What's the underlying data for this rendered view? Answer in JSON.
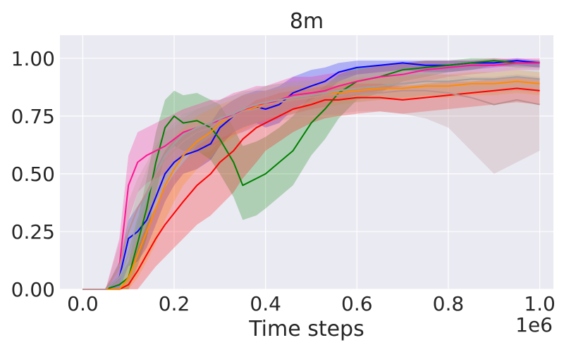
{
  "chart_data": {
    "type": "line",
    "title": "8m",
    "xlabel": "Time steps",
    "ylabel": "",
    "x_scale_label": "1e6",
    "xlim": [
      -0.05,
      1.03
    ],
    "ylim": [
      0.0,
      1.1
    ],
    "x_ticks": [
      0.0,
      0.2,
      0.4,
      0.6,
      0.8,
      1.0
    ],
    "x_tick_labels": [
      "0.0",
      "0.2",
      "0.4",
      "0.6",
      "0.8",
      "1.0"
    ],
    "y_ticks": [
      0.0,
      0.25,
      0.5,
      0.75,
      1.0
    ],
    "y_tick_labels": [
      "0.00",
      "0.25",
      "0.50",
      "0.75",
      "1.00"
    ],
    "grid": true,
    "background": "#eaeaf2",
    "x": [
      0.0,
      0.05,
      0.08,
      0.1,
      0.12,
      0.14,
      0.16,
      0.18,
      0.2,
      0.22,
      0.25,
      0.28,
      0.3,
      0.33,
      0.35,
      0.38,
      0.4,
      0.43,
      0.46,
      0.5,
      0.53,
      0.56,
      0.6,
      0.65,
      0.7,
      0.75,
      0.8,
      0.85,
      0.9,
      0.95,
      1.0
    ],
    "series": [
      {
        "color": "#0000ff",
        "values": [
          0.0,
          0.0,
          0.05,
          0.22,
          0.25,
          0.3,
          0.4,
          0.5,
          0.55,
          0.58,
          0.6,
          0.63,
          0.7,
          0.75,
          0.77,
          0.79,
          0.78,
          0.8,
          0.85,
          0.88,
          0.9,
          0.94,
          0.96,
          0.97,
          0.98,
          0.97,
          0.97,
          0.98,
          0.98,
          0.99,
          0.98
        ],
        "lower": [
          0.0,
          0.0,
          0.0,
          0.1,
          0.12,
          0.18,
          0.28,
          0.38,
          0.45,
          0.5,
          0.52,
          0.56,
          0.62,
          0.68,
          0.7,
          0.72,
          0.7,
          0.72,
          0.78,
          0.82,
          0.85,
          0.9,
          0.93,
          0.94,
          0.95,
          0.94,
          0.94,
          0.95,
          0.96,
          0.97,
          0.96
        ],
        "upper": [
          0.0,
          0.0,
          0.12,
          0.3,
          0.36,
          0.42,
          0.52,
          0.6,
          0.65,
          0.68,
          0.7,
          0.72,
          0.78,
          0.82,
          0.84,
          0.86,
          0.86,
          0.88,
          0.92,
          0.95,
          0.96,
          0.98,
          0.99,
          0.99,
          0.99,
          0.99,
          0.99,
          0.99,
          0.99,
          1.0,
          0.99
        ]
      },
      {
        "color": "#008000",
        "values": [
          0.0,
          0.0,
          0.02,
          0.05,
          0.2,
          0.35,
          0.55,
          0.7,
          0.75,
          0.72,
          0.73,
          0.7,
          0.65,
          0.55,
          0.45,
          0.48,
          0.5,
          0.55,
          0.6,
          0.72,
          0.78,
          0.85,
          0.9,
          0.92,
          0.95,
          0.96,
          0.97,
          0.98,
          0.99,
          0.98,
          0.98
        ],
        "lower": [
          0.0,
          0.0,
          0.0,
          0.0,
          0.1,
          0.22,
          0.42,
          0.58,
          0.62,
          0.6,
          0.6,
          0.56,
          0.5,
          0.4,
          0.3,
          0.32,
          0.35,
          0.4,
          0.45,
          0.58,
          0.65,
          0.74,
          0.82,
          0.85,
          0.9,
          0.92,
          0.94,
          0.95,
          0.97,
          0.96,
          0.96
        ],
        "upper": [
          0.0,
          0.0,
          0.05,
          0.12,
          0.3,
          0.48,
          0.68,
          0.82,
          0.86,
          0.84,
          0.85,
          0.82,
          0.8,
          0.7,
          0.62,
          0.64,
          0.66,
          0.7,
          0.75,
          0.84,
          0.88,
          0.93,
          0.96,
          0.97,
          0.98,
          0.99,
          0.99,
          1.0,
          1.0,
          0.99,
          0.99
        ]
      },
      {
        "color": "#ff1493",
        "values": [
          0.0,
          0.0,
          0.1,
          0.45,
          0.55,
          0.58,
          0.6,
          0.62,
          0.65,
          0.68,
          0.7,
          0.72,
          0.73,
          0.76,
          0.77,
          0.8,
          0.8,
          0.82,
          0.84,
          0.85,
          0.86,
          0.88,
          0.9,
          0.92,
          0.93,
          0.95,
          0.96,
          0.97,
          0.97,
          0.98,
          0.98
        ],
        "lower": [
          0.0,
          0.0,
          0.0,
          0.3,
          0.42,
          0.46,
          0.48,
          0.5,
          0.54,
          0.58,
          0.6,
          0.62,
          0.64,
          0.67,
          0.68,
          0.71,
          0.72,
          0.74,
          0.76,
          0.78,
          0.79,
          0.82,
          0.84,
          0.86,
          0.88,
          0.9,
          0.92,
          0.93,
          0.94,
          0.95,
          0.95
        ],
        "upper": [
          0.0,
          0.0,
          0.22,
          0.58,
          0.68,
          0.7,
          0.72,
          0.74,
          0.76,
          0.78,
          0.8,
          0.82,
          0.82,
          0.85,
          0.86,
          0.88,
          0.88,
          0.9,
          0.92,
          0.92,
          0.93,
          0.94,
          0.95,
          0.97,
          0.98,
          0.99,
          0.99,
          0.99,
          1.0,
          1.0,
          1.0
        ]
      },
      {
        "color": "#ff0000",
        "values": [
          0.0,
          0.0,
          0.0,
          0.02,
          0.08,
          0.15,
          0.22,
          0.28,
          0.33,
          0.38,
          0.45,
          0.5,
          0.55,
          0.6,
          0.65,
          0.7,
          0.72,
          0.75,
          0.78,
          0.8,
          0.82,
          0.82,
          0.83,
          0.83,
          0.82,
          0.83,
          0.84,
          0.85,
          0.86,
          0.87,
          0.86
        ],
        "lower": [
          0.0,
          0.0,
          0.0,
          0.0,
          0.0,
          0.05,
          0.1,
          0.14,
          0.18,
          0.22,
          0.28,
          0.32,
          0.36,
          0.42,
          0.48,
          0.55,
          0.6,
          0.64,
          0.68,
          0.72,
          0.74,
          0.75,
          0.76,
          0.77,
          0.76,
          0.77,
          0.78,
          0.79,
          0.8,
          0.81,
          0.8
        ],
        "upper": [
          0.0,
          0.0,
          0.0,
          0.06,
          0.18,
          0.28,
          0.36,
          0.44,
          0.5,
          0.55,
          0.62,
          0.66,
          0.7,
          0.74,
          0.78,
          0.82,
          0.83,
          0.85,
          0.86,
          0.87,
          0.88,
          0.88,
          0.89,
          0.89,
          0.88,
          0.89,
          0.9,
          0.9,
          0.91,
          0.92,
          0.91
        ]
      },
      {
        "color": "#ff8c00",
        "values": [
          0.0,
          0.0,
          0.0,
          0.05,
          0.15,
          0.25,
          0.35,
          0.45,
          0.52,
          0.58,
          0.64,
          0.68,
          0.72,
          0.75,
          0.77,
          0.79,
          0.8,
          0.81,
          0.82,
          0.83,
          0.84,
          0.85,
          0.86,
          0.87,
          0.87,
          0.88,
          0.88,
          0.89,
          0.89,
          0.9,
          0.89
        ],
        "lower": [
          0.0,
          0.0,
          0.0,
          0.0,
          0.05,
          0.12,
          0.2,
          0.3,
          0.38,
          0.45,
          0.52,
          0.57,
          0.62,
          0.66,
          0.69,
          0.72,
          0.73,
          0.75,
          0.76,
          0.78,
          0.79,
          0.8,
          0.81,
          0.82,
          0.82,
          0.83,
          0.83,
          0.84,
          0.84,
          0.85,
          0.84
        ],
        "upper": [
          0.0,
          0.0,
          0.0,
          0.12,
          0.25,
          0.38,
          0.5,
          0.6,
          0.66,
          0.7,
          0.75,
          0.78,
          0.8,
          0.82,
          0.84,
          0.85,
          0.86,
          0.87,
          0.88,
          0.88,
          0.89,
          0.9,
          0.91,
          0.92,
          0.92,
          0.93,
          0.93,
          0.94,
          0.94,
          0.95,
          0.94
        ]
      },
      {
        "color": "#a0a0a0",
        "values": [
          0.0,
          0.0,
          0.05,
          0.15,
          0.3,
          0.4,
          0.5,
          0.58,
          0.63,
          0.67,
          0.7,
          0.72,
          0.74,
          0.76,
          0.78,
          0.8,
          0.81,
          0.82,
          0.83,
          0.84,
          0.85,
          0.86,
          0.87,
          0.88,
          0.89,
          0.9,
          0.9,
          0.91,
          0.91,
          0.92,
          0.91
        ],
        "lower": [
          0.0,
          0.0,
          0.0,
          0.05,
          0.18,
          0.28,
          0.38,
          0.46,
          0.52,
          0.57,
          0.6,
          0.62,
          0.65,
          0.68,
          0.7,
          0.72,
          0.74,
          0.75,
          0.76,
          0.78,
          0.79,
          0.8,
          0.81,
          0.82,
          0.83,
          0.84,
          0.84,
          0.85,
          0.85,
          0.86,
          0.85
        ],
        "upper": [
          0.0,
          0.0,
          0.12,
          0.28,
          0.42,
          0.52,
          0.62,
          0.68,
          0.72,
          0.76,
          0.78,
          0.8,
          0.82,
          0.84,
          0.85,
          0.87,
          0.88,
          0.89,
          0.9,
          0.91,
          0.91,
          0.92,
          0.93,
          0.94,
          0.94,
          0.95,
          0.95,
          0.96,
          0.96,
          0.97,
          0.96
        ]
      },
      {
        "color": "#bc8f8f",
        "values": [
          0.0,
          0.0,
          0.1,
          0.25,
          0.35,
          0.42,
          0.5,
          0.56,
          0.6,
          0.64,
          0.68,
          0.7,
          0.73,
          0.75,
          0.77,
          0.78,
          0.8,
          0.81,
          0.82,
          0.83,
          0.84,
          0.84,
          0.85,
          0.85,
          0.86,
          0.86,
          0.85,
          0.83,
          0.8,
          0.82,
          0.8
        ],
        "lower": [
          0.0,
          0.0,
          0.02,
          0.12,
          0.22,
          0.3,
          0.38,
          0.44,
          0.5,
          0.54,
          0.58,
          0.6,
          0.64,
          0.66,
          0.68,
          0.7,
          0.72,
          0.73,
          0.74,
          0.75,
          0.76,
          0.76,
          0.77,
          0.77,
          0.76,
          0.74,
          0.7,
          0.6,
          0.5,
          0.55,
          0.6
        ],
        "upper": [
          0.0,
          0.0,
          0.2,
          0.38,
          0.48,
          0.55,
          0.62,
          0.68,
          0.7,
          0.74,
          0.78,
          0.8,
          0.82,
          0.84,
          0.86,
          0.86,
          0.88,
          0.89,
          0.9,
          0.9,
          0.91,
          0.91,
          0.92,
          0.92,
          0.93,
          0.93,
          0.93,
          0.92,
          0.92,
          0.93,
          0.92
        ]
      }
    ]
  }
}
